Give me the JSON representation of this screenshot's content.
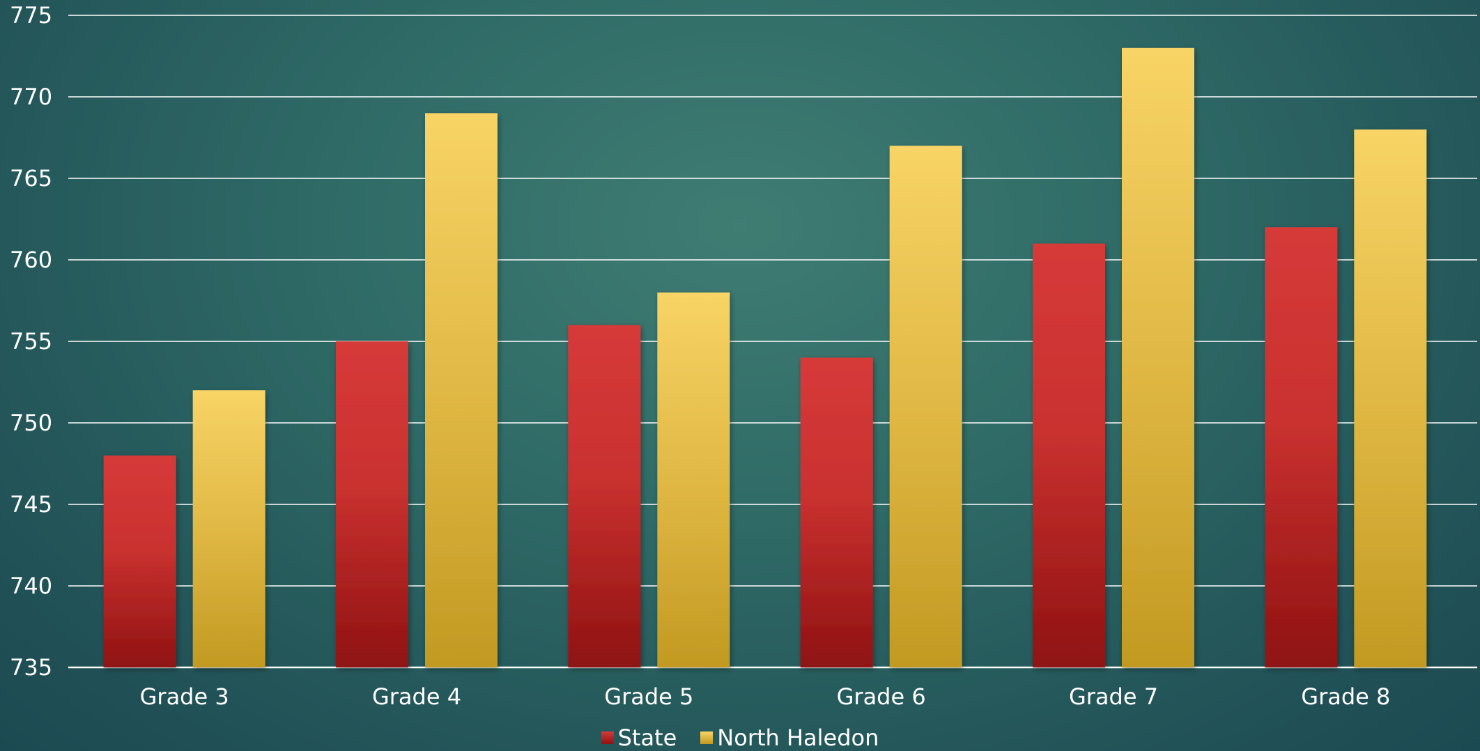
{
  "chart_data": {
    "type": "bar",
    "title": "",
    "xlabel": "",
    "ylabel": "",
    "categories": [
      "Grade 3",
      "Grade 4",
      "Grade 5",
      "Grade 6",
      "Grade 7",
      "Grade 8"
    ],
    "series": [
      {
        "name": "State",
        "values": [
          748,
          755,
          756,
          754,
          761,
          762
        ],
        "color": "#d33a38"
      },
      {
        "name": "North Haledon",
        "values": [
          752,
          769,
          758,
          767,
          773,
          768
        ],
        "color": "#f5cf62"
      }
    ],
    "ylim": [
      735,
      775
    ],
    "yticks": [
      735,
      740,
      745,
      750,
      755,
      760,
      765,
      770,
      775
    ],
    "grid": true,
    "legend_position": "bottom",
    "colors": {
      "state_top": "#d63a39",
      "state_bottom": "#8f1212",
      "nh_top": "#f8d466",
      "nh_bottom": "#c29a22",
      "grid": "#ffffff",
      "background": "#2f6a66"
    }
  }
}
